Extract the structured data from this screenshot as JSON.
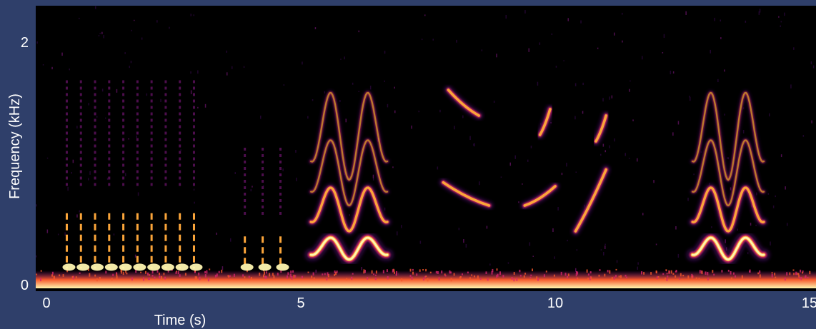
{
  "chart_data": {
    "type": "heatmap",
    "title": "",
    "xlabel": "Time (s)",
    "ylabel": "Frequency (kHz)",
    "xlim": [
      0,
      15.2
    ],
    "ylim": [
      0,
      2.05
    ],
    "x_ticks": [
      0,
      5,
      10,
      15
    ],
    "y_ticks": [
      0,
      2
    ],
    "grid": false,
    "legend": "none",
    "colormap": [
      "#000000",
      "#3b0a52",
      "#8c1a8c",
      "#d6256a",
      "#f5562a",
      "#fba53a",
      "#fff6b0"
    ],
    "background_color": "#2f3f6a",
    "plot_color": "#000000",
    "noise_floor_band_khz": [
      0,
      0.06
    ],
    "calls": [
      {
        "kind": "pulse-train",
        "t_start": 0.4,
        "t_end": 2.9,
        "count": 10,
        "f_low": 0.08,
        "f_high": 0.75
      },
      {
        "kind": "pulse-train",
        "t_start": 3.9,
        "t_end": 4.6,
        "count": 3,
        "f_low": 0.08,
        "f_high": 0.5
      },
      {
        "kind": "harmonic-warble",
        "t_start": 5.1,
        "t_end": 6.8,
        "fundamental_khz": 0.27,
        "harmonics": 4
      },
      {
        "kind": "sweep",
        "points": [
          [
            7.8,
            0.78
          ],
          [
            8.7,
            0.6
          ]
        ]
      },
      {
        "kind": "sweep",
        "points": [
          [
            7.9,
            1.5
          ],
          [
            8.5,
            1.3
          ]
        ]
      },
      {
        "kind": "sweep",
        "points": [
          [
            9.4,
            0.6
          ],
          [
            10.0,
            0.75
          ]
        ]
      },
      {
        "kind": "sweep",
        "points": [
          [
            10.4,
            0.4
          ],
          [
            11.0,
            0.88
          ]
        ]
      },
      {
        "kind": "sweep",
        "points": [
          [
            9.7,
            1.15
          ],
          [
            9.9,
            1.35
          ]
        ]
      },
      {
        "kind": "sweep",
        "points": [
          [
            10.8,
            1.1
          ],
          [
            11.0,
            1.3
          ]
        ]
      },
      {
        "kind": "harmonic-warble",
        "t_start": 12.6,
        "t_end": 14.2,
        "fundamental_khz": 0.27,
        "harmonics": 4
      }
    ]
  }
}
